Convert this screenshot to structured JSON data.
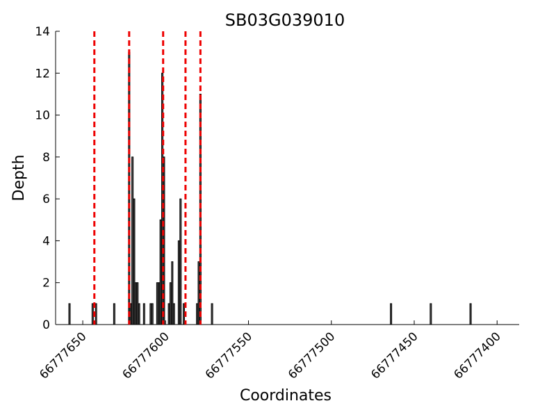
{
  "chart_data": {
    "type": "bar",
    "title": "SB03G039010",
    "xlabel": "Coordinates",
    "ylabel": "Depth",
    "x_reversed": true,
    "xlim": [
      66777658,
      66777398
    ],
    "ylim": [
      0,
      14
    ],
    "x_ticks": [
      66777650,
      66777600,
      66777550,
      66777500,
      66777450,
      66777400
    ],
    "y_ticks": [
      0,
      2,
      4,
      6,
      8,
      10,
      12,
      14
    ],
    "grid": false,
    "legend": "none",
    "bars": [
      {
        "x": 66777658,
        "y": 1
      },
      {
        "x": 66777644,
        "y": 1
      },
      {
        "x": 66777642,
        "y": 1
      },
      {
        "x": 66777631,
        "y": 1
      },
      {
        "x": 66777622,
        "y": 13
      },
      {
        "x": 66777621,
        "y": 1
      },
      {
        "x": 66777620,
        "y": 8
      },
      {
        "x": 66777619,
        "y": 6
      },
      {
        "x": 66777618,
        "y": 2
      },
      {
        "x": 66777617,
        "y": 2
      },
      {
        "x": 66777616,
        "y": 1
      },
      {
        "x": 66777613,
        "y": 1
      },
      {
        "x": 66777609,
        "y": 1
      },
      {
        "x": 66777608,
        "y": 1
      },
      {
        "x": 66777605,
        "y": 2
      },
      {
        "x": 66777604,
        "y": 2
      },
      {
        "x": 66777603,
        "y": 5
      },
      {
        "x": 66777602,
        "y": 12
      },
      {
        "x": 66777601,
        "y": 8
      },
      {
        "x": 66777598,
        "y": 1
      },
      {
        "x": 66777597,
        "y": 2
      },
      {
        "x": 66777596,
        "y": 3
      },
      {
        "x": 66777595,
        "y": 1
      },
      {
        "x": 66777592,
        "y": 4
      },
      {
        "x": 66777591,
        "y": 6
      },
      {
        "x": 66777589,
        "y": 1
      },
      {
        "x": 66777581,
        "y": 1
      },
      {
        "x": 66777580,
        "y": 3
      },
      {
        "x": 66777579,
        "y": 11
      },
      {
        "x": 66777572,
        "y": 1
      },
      {
        "x": 66777464,
        "y": 1
      },
      {
        "x": 66777440,
        "y": 1
      },
      {
        "x": 66777416,
        "y": 1
      }
    ],
    "markers": [
      66777643,
      66777622,
      66777601.5,
      66777588,
      66777579
    ],
    "marker_color": "#ee0000",
    "bar_color": "#000000",
    "bar_fill": "#555555"
  }
}
